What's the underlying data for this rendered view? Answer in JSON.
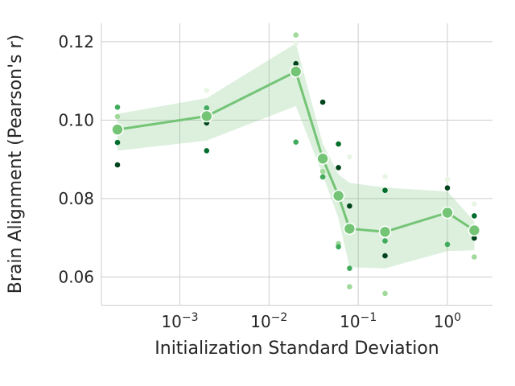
{
  "chart_data": {
    "type": "line",
    "title": "",
    "xlabel": "Initialization Standard Deviation",
    "ylabel": "Brain Alignment (Pearson's r)",
    "x_scale": "log",
    "y_scale": "linear",
    "xlim": [
      0.000132,
      3.2
    ],
    "ylim": [
      0.0528,
      0.1247
    ],
    "grid": true,
    "legend": false,
    "x_ticks": [
      {
        "value": 0.001,
        "base": "10",
        "exponent": "−3"
      },
      {
        "value": 0.01,
        "base": "10",
        "exponent": "−2"
      },
      {
        "value": 0.1,
        "base": "10",
        "exponent": "−1"
      },
      {
        "value": 1.0,
        "base": "10",
        "exponent": "0"
      }
    ],
    "y_ticks": [
      {
        "value": 0.12,
        "label": "0.12"
      },
      {
        "value": 0.1,
        "label": "0.10"
      },
      {
        "value": 0.08,
        "label": "0.08"
      },
      {
        "value": 0.06,
        "label": "0.06"
      }
    ],
    "x": [
      0.0002,
      0.002,
      0.02,
      0.04,
      0.06,
      0.08,
      0.2,
      1.0,
      2.0
    ],
    "mean": [
      0.0976,
      0.101,
      0.1124,
      0.0902,
      0.0807,
      0.0723,
      0.0715,
      0.0764,
      0.0719
    ],
    "band_upper": [
      0.1016,
      0.1056,
      0.1196,
      0.094,
      0.0862,
      0.084,
      0.0828,
      0.0818,
      0.0742
    ],
    "band_lower": [
      0.0922,
      0.0948,
      0.1036,
      0.086,
      0.075,
      0.0625,
      0.0622,
      0.0666,
      0.0668
    ],
    "scatter": [
      {
        "x": 0.0002,
        "y": 0.1033,
        "shade": "medium"
      },
      {
        "x": 0.0002,
        "y": 0.1009,
        "shade": "light"
      },
      {
        "x": 0.0002,
        "y": 0.0943,
        "shade": "dark"
      },
      {
        "x": 0.0002,
        "y": 0.0886,
        "shade": "darkest"
      },
      {
        "x": 0.002,
        "y": 0.1076,
        "shade": "lightest"
      },
      {
        "x": 0.002,
        "y": 0.1031,
        "shade": "medium"
      },
      {
        "x": 0.002,
        "y": 0.0993,
        "shade": "darkest"
      },
      {
        "x": 0.002,
        "y": 0.0922,
        "shade": "dark"
      },
      {
        "x": 0.02,
        "y": 0.1196,
        "shade": "lightest"
      },
      {
        "x": 0.02,
        "y": 0.1217,
        "shade": "light"
      },
      {
        "x": 0.02,
        "y": 0.1144,
        "shade": "darkest"
      },
      {
        "x": 0.02,
        "y": 0.0944,
        "shade": "medium"
      },
      {
        "x": 0.04,
        "y": 0.1046,
        "shade": "darkest"
      },
      {
        "x": 0.04,
        "y": 0.0869,
        "shade": "light"
      },
      {
        "x": 0.04,
        "y": 0.0855,
        "shade": "medium"
      },
      {
        "x": 0.06,
        "y": 0.0939,
        "shade": "dark"
      },
      {
        "x": 0.06,
        "y": 0.0879,
        "shade": "darkest"
      },
      {
        "x": 0.06,
        "y": 0.0685,
        "shade": "light"
      },
      {
        "x": 0.06,
        "y": 0.0677,
        "shade": "medium"
      },
      {
        "x": 0.08,
        "y": 0.0906,
        "shade": "lightest"
      },
      {
        "x": 0.08,
        "y": 0.0781,
        "shade": "darkest"
      },
      {
        "x": 0.08,
        "y": 0.0622,
        "shade": "medium"
      },
      {
        "x": 0.08,
        "y": 0.0575,
        "shade": "light"
      },
      {
        "x": 0.2,
        "y": 0.0856,
        "shade": "lightest"
      },
      {
        "x": 0.2,
        "y": 0.0821,
        "shade": "dark"
      },
      {
        "x": 0.2,
        "y": 0.0692,
        "shade": "medium"
      },
      {
        "x": 0.2,
        "y": 0.0654,
        "shade": "darkest"
      },
      {
        "x": 0.2,
        "y": 0.0558,
        "shade": "light"
      },
      {
        "x": 1.0,
        "y": 0.0849,
        "shade": "lightest"
      },
      {
        "x": 1.0,
        "y": 0.0827,
        "shade": "darkest"
      },
      {
        "x": 1.0,
        "y": 0.0683,
        "shade": "medium"
      },
      {
        "x": 2.0,
        "y": 0.0786,
        "shade": "lightest"
      },
      {
        "x": 2.0,
        "y": 0.0756,
        "shade": "dark"
      },
      {
        "x": 2.0,
        "y": 0.0699,
        "shade": "darkest"
      },
      {
        "x": 2.0,
        "y": 0.0651,
        "shade": "light"
      }
    ],
    "colors": {
      "mean_line": "#74c476",
      "mean_marker": "#74c476",
      "mean_marker_edge": "#ffffff",
      "band_fill": "rgba(116,196,118,0.25)",
      "grid": "#cdcdcd",
      "spine": "#cdcdcd",
      "text": "#262626",
      "shades": {
        "lightest": "#e9f6e5",
        "light": "#a1d99b",
        "medium": "#41ab5d",
        "dark": "#006d2c",
        "darkest": "#00441b"
      }
    }
  }
}
